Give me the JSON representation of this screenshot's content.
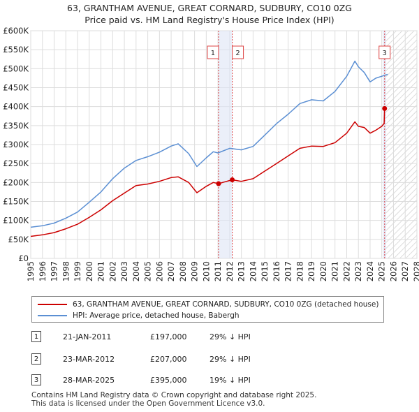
{
  "title_line1": "63, GRANTHAM AVENUE, GREAT CORNARD, SUDBURY, CO10 0ZG",
  "title_line2": "Price paid vs. HM Land Registry's House Price Index (HPI)",
  "chart_data": {
    "type": "line",
    "y_tick_labels": [
      "£0",
      "£50K",
      "£100K",
      "£150K",
      "£200K",
      "£250K",
      "£300K",
      "£350K",
      "£400K",
      "£450K",
      "£500K",
      "£550K",
      "£600K"
    ],
    "y_tick_values": [
      0,
      50000,
      100000,
      150000,
      200000,
      250000,
      300000,
      350000,
      400000,
      450000,
      500000,
      550000,
      600000
    ],
    "x_tick_labels": [
      "1995",
      "1996",
      "1997",
      "1998",
      "1999",
      "2000",
      "2001",
      "2002",
      "2003",
      "2004",
      "2005",
      "2006",
      "2007",
      "2008",
      "2009",
      "2010",
      "2011",
      "2012",
      "2013",
      "2014",
      "2015",
      "2016",
      "2017",
      "2018",
      "2019",
      "2020",
      "2021",
      "2022",
      "2023",
      "2024",
      "2025",
      "2026",
      "2027",
      "2028"
    ],
    "xlim": [
      1995,
      2028
    ],
    "ylim": [
      0,
      600000
    ],
    "grid": true,
    "forecast_start": 2025.25,
    "series": [
      {
        "name": "63, GRANTHAM AVENUE, GREAT CORNARD, SUDBURY, CO10 0ZG (detached house)",
        "color": "#cc0000",
        "x": [
          1995.0,
          1996.0,
          1997.0,
          1998.0,
          1999.0,
          2000.0,
          2001.0,
          2002.0,
          2003.0,
          2004.0,
          2005.0,
          2006.0,
          2007.0,
          2007.6,
          2008.5,
          2009.2,
          2010.0,
          2010.6,
          2011.05,
          2011.5,
          2012.22,
          2013.0,
          2014.0,
          2015.0,
          2016.0,
          2017.0,
          2018.0,
          2019.0,
          2020.0,
          2021.0,
          2022.0,
          2022.7,
          2023.0,
          2023.5,
          2024.0,
          2024.5,
          2025.0,
          2025.2,
          2025.24
        ],
        "y": [
          58000,
          62000,
          68000,
          78000,
          90000,
          108000,
          128000,
          152000,
          172000,
          192000,
          196000,
          203000,
          213000,
          215000,
          200000,
          173000,
          190000,
          200000,
          197000,
          201000,
          207000,
          203000,
          210000,
          230000,
          250000,
          270000,
          290000,
          296000,
          295000,
          305000,
          330000,
          360000,
          348000,
          345000,
          330000,
          338000,
          348000,
          356000,
          395000
        ]
      },
      {
        "name": "HPI: Average price, detached house, Babergh",
        "color": "#5b8fd3",
        "x": [
          1995.0,
          1996.0,
          1997.0,
          1998.0,
          1999.0,
          2000.0,
          2001.0,
          2002.0,
          2003.0,
          2004.0,
          2005.0,
          2006.0,
          2007.0,
          2007.6,
          2008.5,
          2009.2,
          2010.0,
          2010.6,
          2011.0,
          2012.0,
          2013.0,
          2014.0,
          2015.0,
          2016.0,
          2017.0,
          2018.0,
          2019.0,
          2020.0,
          2021.0,
          2022.0,
          2022.7,
          2023.0,
          2023.5,
          2024.0,
          2024.5,
          2025.0,
          2025.5
        ],
        "y": [
          82000,
          86000,
          93000,
          106000,
          122000,
          148000,
          175000,
          210000,
          238000,
          258000,
          268000,
          280000,
          296000,
          302000,
          276000,
          242000,
          265000,
          281000,
          278000,
          290000,
          286000,
          295000,
          325000,
          355000,
          380000,
          408000,
          418000,
          415000,
          440000,
          480000,
          520000,
          505000,
          490000,
          465000,
          475000,
          480000,
          485000
        ]
      }
    ],
    "sales": [
      {
        "label": "1",
        "x": 2011.05,
        "y": 197000
      },
      {
        "label": "2",
        "x": 2012.22,
        "y": 207000
      },
      {
        "label": "3",
        "x": 2025.24,
        "y": 395000
      }
    ]
  },
  "legend": {
    "property_label": "63, GRANTHAM AVENUE, GREAT CORNARD, SUDBURY, CO10 0ZG (detached house)",
    "hpi_label": "HPI: Average price, detached house, Babergh"
  },
  "transactions": [
    {
      "num": "1",
      "date": "21-JAN-2011",
      "price": "£197,000",
      "hpi": "29% ↓ HPI"
    },
    {
      "num": "2",
      "date": "23-MAR-2012",
      "price": "£207,000",
      "hpi": "29% ↓ HPI"
    },
    {
      "num": "3",
      "date": "28-MAR-2025",
      "price": "£395,000",
      "hpi": "19% ↓ HPI"
    }
  ],
  "footer": {
    "line1": "Contains HM Land Registry data © Crown copyright and database right 2025.",
    "line2": "This data is licensed under the Open Government Licence v3.0."
  }
}
